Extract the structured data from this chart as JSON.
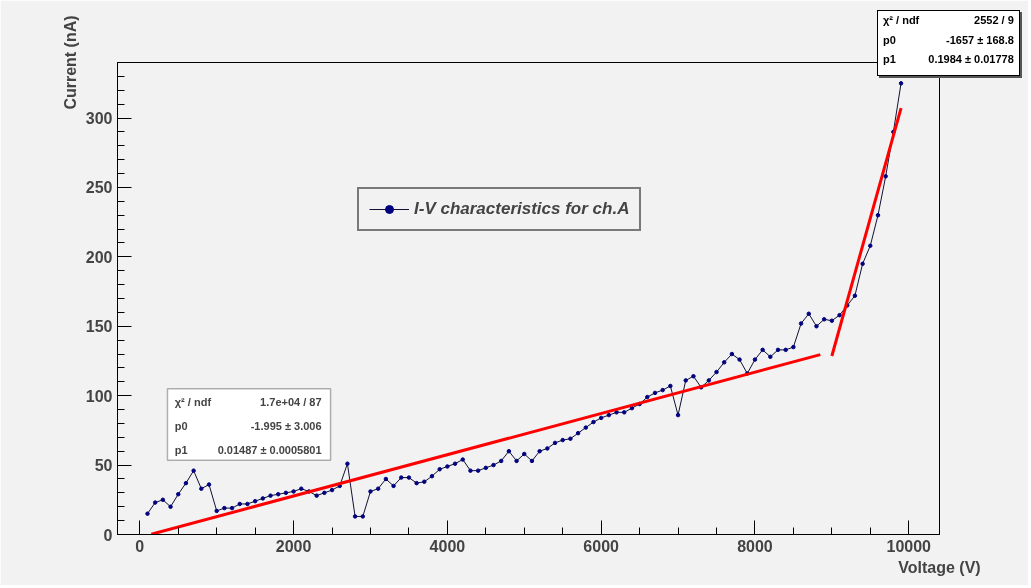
{
  "chart_data": {
    "type": "line",
    "xlabel": "Voltage (V)",
    "ylabel": "Current (nA)",
    "xlim": [
      -290,
      10400
    ],
    "ylim": [
      0,
      340
    ],
    "xticks": [
      0,
      2000,
      4000,
      6000,
      8000,
      10000
    ],
    "yticks": [
      0,
      50,
      100,
      150,
      200,
      250,
      300
    ],
    "grid": false,
    "legend": "center",
    "marker": "circle",
    "line_style": "solid",
    "series": [
      {
        "name": "I-V characteristics for ch.A",
        "color": "#000080",
        "x": [
          100,
          200,
          300,
          400,
          500,
          600,
          700,
          800,
          900,
          1000,
          1100,
          1200,
          1300,
          1400,
          1500,
          1600,
          1700,
          1800,
          1900,
          2000,
          2100,
          2200,
          2300,
          2400,
          2500,
          2600,
          2700,
          2800,
          2900,
          3000,
          3100,
          3200,
          3300,
          3400,
          3500,
          3600,
          3700,
          3800,
          3900,
          4000,
          4100,
          4200,
          4300,
          4400,
          4500,
          4600,
          4700,
          4800,
          4900,
          5000,
          5100,
          5200,
          5300,
          5400,
          5500,
          5600,
          5700,
          5800,
          5900,
          6000,
          6100,
          6200,
          6300,
          6400,
          6500,
          6600,
          6700,
          6800,
          6900,
          7000,
          7100,
          7200,
          7300,
          7400,
          7500,
          7600,
          7700,
          7800,
          7900,
          8000,
          8100,
          8200,
          8300,
          8400,
          8500,
          8600,
          8700,
          8800,
          8900,
          9000,
          9100,
          9200,
          9300,
          9400,
          9500,
          9600,
          9700,
          9800,
          9900
        ],
        "values": [
          15,
          23,
          25,
          20,
          29,
          37,
          46,
          33,
          36,
          17,
          19,
          19,
          22,
          22,
          24,
          26,
          28,
          29,
          30,
          31,
          33,
          31,
          28,
          30,
          32,
          35,
          51,
          13,
          13,
          31,
          33,
          40,
          35,
          41,
          41,
          37,
          38,
          42,
          47,
          49,
          51,
          54,
          46,
          46,
          48,
          50,
          53,
          60,
          53,
          58,
          53,
          60,
          62,
          66,
          68,
          69,
          73,
          77,
          81,
          84,
          86,
          88,
          88,
          91,
          94,
          99,
          102,
          104,
          107,
          86,
          111,
          114,
          106,
          111,
          117,
          124,
          130,
          126,
          116,
          126,
          133,
          128,
          133,
          133,
          135,
          152,
          159,
          150,
          155,
          154,
          158,
          165,
          172,
          195,
          208,
          230,
          258,
          290,
          325
        ]
      },
      {
        "color": "#ff0000",
        "marker": "none",
        "x": [
          150,
          8850
        ],
        "values": [
          0.2,
          129.6
        ]
      },
      {
        "color": "#ff0000",
        "marker": "none",
        "x": [
          9000,
          9900
        ],
        "values": [
          128.6,
          307.2
        ]
      }
    ],
    "annotations": [
      "χ² / ndf",
      "1.7e+04 / 87",
      "p0",
      "-1.995 ± 3.006",
      "p1",
      "0.01487 ± 0.0005801",
      "χ² / ndf",
      "2552 / 9",
      "p0",
      "-1657 ± 168.8",
      "p1",
      "0.1984 ± 0.01778"
    ]
  }
}
